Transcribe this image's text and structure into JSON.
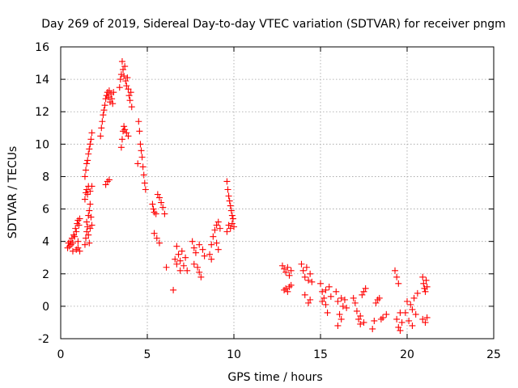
{
  "chart_data": {
    "type": "scatter",
    "title": "Day 269 of 2019, Sidereal Day-to-day VTEC variation (SDTVAR) for receiver pngm",
    "xlabel": "GPS time / hours",
    "ylabel": "SDTVAR / TECUs",
    "xlim": [
      0,
      25
    ],
    "ylim": [
      -2,
      16
    ],
    "x_ticks": [
      0,
      5,
      10,
      15,
      20,
      25
    ],
    "y_ticks": [
      -2,
      0,
      2,
      4,
      6,
      8,
      10,
      12,
      14,
      16
    ],
    "grid": true,
    "marker": "+",
    "marker_color": "#ff0000",
    "series": [
      {
        "name": "pngm",
        "points": [
          [
            0.4,
            3.6
          ],
          [
            0.45,
            3.9
          ],
          [
            0.5,
            3.7
          ],
          [
            0.55,
            4.0
          ],
          [
            0.6,
            3.8
          ],
          [
            0.65,
            4.2
          ],
          [
            0.7,
            3.9
          ],
          [
            0.75,
            4.4
          ],
          [
            0.8,
            4.3
          ],
          [
            0.85,
            4.8
          ],
          [
            0.9,
            4.6
          ],
          [
            0.95,
            5.1
          ],
          [
            1.0,
            5.3
          ],
          [
            1.05,
            5.0
          ],
          [
            1.1,
            5.4
          ],
          [
            0.7,
            3.4
          ],
          [
            0.9,
            3.5
          ],
          [
            1.0,
            3.6
          ],
          [
            1.1,
            3.4
          ],
          [
            1.0,
            4.0
          ],
          [
            1.4,
            3.8
          ],
          [
            1.45,
            4.2
          ],
          [
            1.5,
            4.6
          ],
          [
            1.5,
            5.2
          ],
          [
            1.55,
            4.9
          ],
          [
            1.6,
            5.6
          ],
          [
            1.65,
            5.9
          ],
          [
            1.7,
            6.3
          ],
          [
            1.4,
            6.6
          ],
          [
            1.45,
            7.0
          ],
          [
            1.5,
            7.2
          ],
          [
            1.55,
            6.9
          ],
          [
            1.6,
            7.4
          ],
          [
            1.7,
            7.1
          ],
          [
            1.8,
            7.4
          ],
          [
            1.75,
            5.5
          ],
          [
            1.8,
            5.0
          ],
          [
            1.6,
            4.4
          ],
          [
            1.7,
            4.8
          ],
          [
            1.65,
            3.9
          ],
          [
            1.4,
            8.0
          ],
          [
            1.45,
            8.4
          ],
          [
            1.5,
            8.8
          ],
          [
            1.55,
            9.0
          ],
          [
            1.6,
            9.4
          ],
          [
            1.65,
            9.7
          ],
          [
            1.7,
            10.0
          ],
          [
            1.75,
            10.3
          ],
          [
            1.8,
            10.7
          ],
          [
            2.3,
            10.5
          ],
          [
            2.35,
            11.0
          ],
          [
            2.4,
            11.4
          ],
          [
            2.45,
            11.8
          ],
          [
            2.5,
            12.1
          ],
          [
            2.55,
            12.4
          ],
          [
            2.6,
            12.8
          ],
          [
            2.65,
            13.0
          ],
          [
            2.7,
            13.2
          ],
          [
            2.75,
            12.9
          ],
          [
            2.8,
            13.3
          ],
          [
            2.85,
            12.6
          ],
          [
            2.9,
            13.1
          ],
          [
            2.95,
            12.8
          ],
          [
            3.0,
            12.5
          ],
          [
            3.05,
            13.2
          ],
          [
            2.6,
            7.5
          ],
          [
            2.7,
            7.7
          ],
          [
            2.8,
            7.8
          ],
          [
            3.4,
            13.5
          ],
          [
            3.45,
            14.0
          ],
          [
            3.5,
            14.3
          ],
          [
            3.55,
            15.1
          ],
          [
            3.6,
            14.6
          ],
          [
            3.65,
            14.2
          ],
          [
            3.7,
            14.8
          ],
          [
            3.75,
            13.9
          ],
          [
            3.8,
            13.6
          ],
          [
            3.85,
            14.1
          ],
          [
            3.9,
            13.4
          ],
          [
            3.95,
            13.0
          ],
          [
            4.0,
            12.7
          ],
          [
            4.05,
            13.2
          ],
          [
            4.1,
            12.3
          ],
          [
            3.5,
            9.8
          ],
          [
            3.55,
            10.3
          ],
          [
            3.6,
            10.8
          ],
          [
            3.65,
            11.1
          ],
          [
            3.7,
            10.9
          ],
          [
            3.8,
            10.7
          ],
          [
            3.9,
            10.5
          ],
          [
            4.5,
            11.4
          ],
          [
            4.55,
            10.8
          ],
          [
            4.6,
            10.0
          ],
          [
            4.65,
            9.6
          ],
          [
            4.7,
            9.2
          ],
          [
            4.75,
            8.6
          ],
          [
            4.8,
            8.1
          ],
          [
            4.85,
            7.6
          ],
          [
            4.9,
            7.2
          ],
          [
            4.45,
            8.8
          ],
          [
            5.3,
            6.3
          ],
          [
            5.35,
            6.0
          ],
          [
            5.4,
            5.8
          ],
          [
            5.5,
            5.7
          ],
          [
            5.6,
            6.9
          ],
          [
            5.7,
            6.7
          ],
          [
            5.8,
            6.4
          ],
          [
            5.9,
            6.1
          ],
          [
            6.0,
            5.7
          ],
          [
            5.4,
            4.5
          ],
          [
            5.55,
            4.2
          ],
          [
            5.7,
            3.9
          ],
          [
            6.1,
            2.4
          ],
          [
            6.5,
            1.0
          ],
          [
            6.6,
            2.9
          ],
          [
            6.7,
            2.6
          ],
          [
            6.8,
            3.2
          ],
          [
            6.9,
            2.8
          ],
          [
            7.0,
            3.4
          ],
          [
            7.1,
            2.5
          ],
          [
            7.2,
            3.0
          ],
          [
            7.3,
            2.2
          ],
          [
            6.7,
            3.7
          ],
          [
            6.9,
            2.2
          ],
          [
            7.6,
            4.0
          ],
          [
            7.7,
            3.6
          ],
          [
            7.8,
            3.3
          ],
          [
            7.9,
            2.4
          ],
          [
            8.0,
            2.1
          ],
          [
            8.1,
            1.8
          ],
          [
            8.2,
            3.5
          ],
          [
            8.3,
            3.1
          ],
          [
            7.7,
            2.6
          ],
          [
            8.0,
            3.8
          ],
          [
            8.6,
            3.2
          ],
          [
            8.7,
            3.8
          ],
          [
            8.8,
            4.3
          ],
          [
            8.9,
            4.7
          ],
          [
            9.0,
            5.0
          ],
          [
            9.1,
            5.2
          ],
          [
            9.2,
            4.8
          ],
          [
            9.0,
            3.9
          ],
          [
            9.1,
            3.5
          ],
          [
            8.7,
            2.9
          ],
          [
            9.6,
            4.6
          ],
          [
            9.7,
            5.0
          ],
          [
            9.8,
            4.8
          ],
          [
            9.9,
            5.1
          ],
          [
            10.0,
            4.9
          ],
          [
            9.6,
            7.7
          ],
          [
            9.65,
            7.2
          ],
          [
            9.7,
            6.8
          ],
          [
            9.75,
            6.5
          ],
          [
            9.8,
            6.2
          ],
          [
            9.85,
            5.9
          ],
          [
            9.9,
            5.6
          ],
          [
            9.95,
            5.4
          ],
          [
            12.8,
            2.5
          ],
          [
            12.9,
            2.3
          ],
          [
            13.0,
            2.1
          ],
          [
            13.1,
            2.4
          ],
          [
            13.2,
            1.9
          ],
          [
            13.3,
            2.2
          ],
          [
            12.9,
            1.0
          ],
          [
            13.0,
            1.1
          ],
          [
            13.1,
            0.9
          ],
          [
            13.2,
            1.2
          ],
          [
            13.3,
            1.3
          ],
          [
            13.9,
            2.6
          ],
          [
            14.0,
            2.2
          ],
          [
            14.1,
            1.8
          ],
          [
            14.2,
            2.4
          ],
          [
            14.3,
            1.6
          ],
          [
            14.4,
            2.0
          ],
          [
            14.5,
            1.5
          ],
          [
            14.1,
            0.7
          ],
          [
            14.3,
            0.2
          ],
          [
            14.4,
            0.4
          ],
          [
            15.0,
            1.4
          ],
          [
            15.1,
            0.9
          ],
          [
            15.2,
            0.5
          ],
          [
            15.3,
            0.1
          ],
          [
            15.4,
            -0.4
          ],
          [
            15.5,
            1.2
          ],
          [
            15.6,
            0.6
          ],
          [
            15.1,
            0.3
          ],
          [
            15.3,
            1.0
          ],
          [
            15.9,
            0.9
          ],
          [
            16.0,
            0.3
          ],
          [
            16.1,
            -0.5
          ],
          [
            16.2,
            0.5
          ],
          [
            16.3,
            0.0
          ],
          [
            16.4,
            0.4
          ],
          [
            16.5,
            -0.1
          ],
          [
            16.0,
            -1.2
          ],
          [
            16.2,
            -0.8
          ],
          [
            16.9,
            0.5
          ],
          [
            17.0,
            0.2
          ],
          [
            17.1,
            -0.3
          ],
          [
            17.2,
            -0.8
          ],
          [
            17.3,
            -1.1
          ],
          [
            17.4,
            0.7
          ],
          [
            17.5,
            0.9
          ],
          [
            17.6,
            1.1
          ],
          [
            17.3,
            -0.6
          ],
          [
            17.5,
            -1.0
          ],
          [
            18.0,
            -1.4
          ],
          [
            18.1,
            -0.9
          ],
          [
            18.2,
            0.2
          ],
          [
            18.3,
            0.4
          ],
          [
            18.4,
            0.5
          ],
          [
            18.5,
            -0.8
          ],
          [
            18.6,
            -0.7
          ],
          [
            18.8,
            -0.5
          ],
          [
            19.3,
            2.2
          ],
          [
            19.4,
            1.8
          ],
          [
            19.5,
            1.4
          ],
          [
            19.4,
            -0.8
          ],
          [
            19.5,
            -1.3
          ],
          [
            19.6,
            -0.4
          ],
          [
            19.7,
            -1.0
          ],
          [
            19.6,
            -1.5
          ],
          [
            19.9,
            -0.4
          ],
          [
            20.0,
            0.3
          ],
          [
            20.1,
            -0.9
          ],
          [
            20.2,
            0.1
          ],
          [
            20.3,
            -1.2
          ],
          [
            20.4,
            0.5
          ],
          [
            20.5,
            -0.5
          ],
          [
            20.6,
            0.8
          ],
          [
            20.3,
            -0.2
          ],
          [
            20.9,
            1.8
          ],
          [
            20.95,
            1.4
          ],
          [
            21.0,
            1.1
          ],
          [
            21.05,
            0.9
          ],
          [
            21.1,
            1.6
          ],
          [
            21.15,
            1.2
          ],
          [
            20.9,
            -0.8
          ],
          [
            21.05,
            -1.0
          ],
          [
            21.15,
            -0.7
          ]
        ]
      }
    ]
  }
}
